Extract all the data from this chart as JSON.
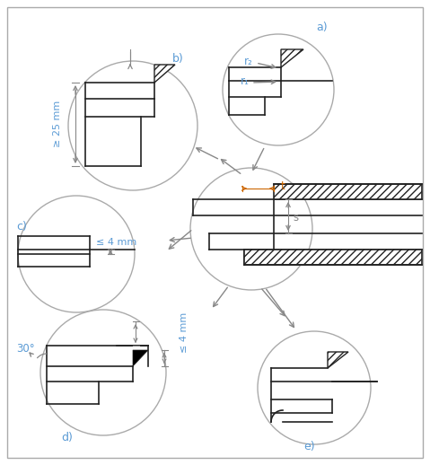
{
  "bg_color": "#f0f0f0",
  "border_color": "#aaaaaa",
  "line_color": "#222222",
  "circle_color": "#aaaaaa",
  "arrow_color": "#888888",
  "label_color": "#5b9bd5",
  "dim_color": "#cc6600",
  "label_a": "a)",
  "label_b": "b)",
  "label_c": "c)",
  "label_d": "d)",
  "label_e": "e)",
  "text_25mm": "≥ 25 mm",
  "text_4mm_c": "≤ 4 mm",
  "text_4mm_d": "≤ 4 mm",
  "text_30deg": "30°",
  "text_t": "t",
  "text_s": "s",
  "text_r1": "r₁",
  "text_r2": "r₂"
}
